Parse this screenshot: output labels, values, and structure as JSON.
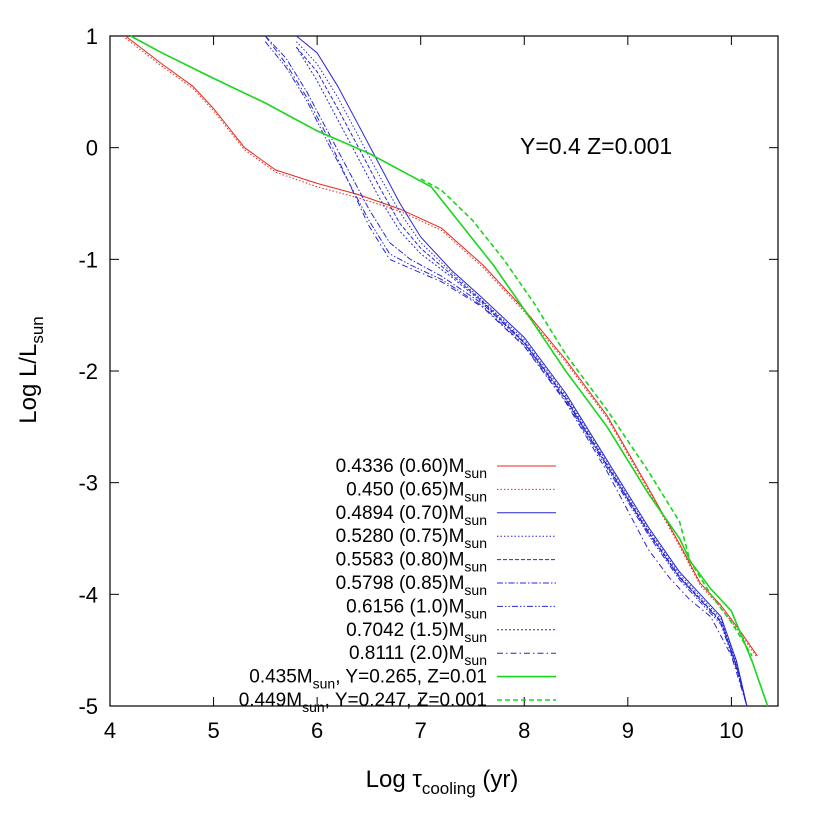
{
  "chart_data": {
    "type": "line",
    "xlabel": {
      "prefix": "Log ",
      "greek": "τ",
      "sub": "cooling",
      "suffix": " (yr)"
    },
    "ylabel": {
      "prefix": "Log L/L",
      "sub": "sun"
    },
    "annotation": "Y=0.4  Z=0.001",
    "xlim": [
      4,
      10.45
    ],
    "ylim": [
      -5,
      1
    ],
    "xticks": [
      4,
      5,
      6,
      7,
      8,
      9,
      10
    ],
    "yticks": [
      1,
      0,
      -1,
      -2,
      -3,
      -4,
      -5
    ],
    "colors": {
      "red": "#e8291f",
      "blue": "#2727d6",
      "green": "#18d61c"
    },
    "series": [
      {
        "label": "0.4336 (0.60)M",
        "sub": "sun",
        "tail": "",
        "color": "#e8291f",
        "dash": "solid",
        "x": [
          4.15,
          4.5,
          4.8,
          5.0,
          5.3,
          5.6,
          6.0,
          6.4,
          6.8,
          7.2,
          7.6,
          8.0,
          8.4,
          8.8,
          9.2,
          9.5,
          9.7,
          9.9,
          10.1,
          10.25
        ],
        "y": [
          1.0,
          0.75,
          0.55,
          0.35,
          0.0,
          -0.2,
          -0.32,
          -0.42,
          -0.55,
          -0.72,
          -1.05,
          -1.45,
          -1.9,
          -2.4,
          -3.05,
          -3.55,
          -3.9,
          -4.1,
          -4.35,
          -4.55
        ]
      },
      {
        "label": "0.450 (0.65)M",
        "sub": "sun",
        "tail": "",
        "color": "#e8291f",
        "dash": "1.5,2",
        "x": [
          4.15,
          4.5,
          4.8,
          5.0,
          5.3,
          5.6,
          6.0,
          6.4,
          6.8,
          7.2,
          7.6,
          8.0,
          8.4,
          8.8,
          9.2,
          9.5,
          9.7,
          9.9,
          10.1,
          10.25
        ],
        "y": [
          0.98,
          0.73,
          0.53,
          0.33,
          -0.02,
          -0.22,
          -0.35,
          -0.45,
          -0.57,
          -0.74,
          -1.07,
          -1.47,
          -1.92,
          -2.42,
          -3.07,
          -3.57,
          -3.92,
          -4.12,
          -4.37,
          -4.57
        ]
      },
      {
        "label": "0.4894 (0.70)M",
        "sub": "sun",
        "tail": "",
        "color": "#2727d6",
        "dash": "solid",
        "x": [
          5.8,
          6.0,
          6.2,
          6.4,
          6.6,
          6.8,
          7.0,
          7.3,
          7.6,
          8.0,
          8.4,
          8.8,
          9.2,
          9.5,
          9.7,
          9.9,
          10.05,
          10.15
        ],
        "y": [
          1.0,
          0.85,
          0.55,
          0.2,
          -0.15,
          -0.5,
          -0.8,
          -1.1,
          -1.35,
          -1.7,
          -2.2,
          -2.8,
          -3.4,
          -3.8,
          -4.0,
          -4.2,
          -4.6,
          -5.0
        ]
      },
      {
        "label": "0.5280 (0.75)M",
        "sub": "sun",
        "tail": "",
        "color": "#2727d6",
        "dash": "1.5,2",
        "x": [
          5.8,
          6.0,
          6.2,
          6.4,
          6.6,
          6.8,
          7.0,
          7.3,
          7.6,
          8.0,
          8.4,
          8.8,
          9.2,
          9.5,
          9.7,
          9.9,
          10.05,
          10.15
        ],
        "y": [
          0.95,
          0.75,
          0.45,
          0.1,
          -0.25,
          -0.58,
          -0.85,
          -1.12,
          -1.37,
          -1.72,
          -2.22,
          -2.82,
          -3.42,
          -3.82,
          -4.02,
          -4.22,
          -4.62,
          -5.0
        ]
      },
      {
        "label": "0.5583 (0.80)M",
        "sub": "sun",
        "tail": "",
        "color": "#2727d6",
        "dash": "4,2",
        "x": [
          5.8,
          6.0,
          6.2,
          6.4,
          6.6,
          6.8,
          7.0,
          7.3,
          7.6,
          8.0,
          8.4,
          8.8,
          9.2,
          9.5,
          9.7,
          9.9,
          10.05,
          10.15
        ],
        "y": [
          0.9,
          0.68,
          0.35,
          0.0,
          -0.35,
          -0.68,
          -0.9,
          -1.14,
          -1.38,
          -1.74,
          -2.24,
          -2.84,
          -3.44,
          -3.84,
          -4.04,
          -4.24,
          -4.64,
          -5.0
        ]
      },
      {
        "label": "0.5798 (0.85)M",
        "sub": "sun",
        "tail": "",
        "color": "#2727d6",
        "dash": "6,2,1.5,2",
        "x": [
          5.5,
          5.7,
          5.9,
          6.1,
          6.3,
          6.5,
          6.7,
          6.9,
          7.2,
          7.6,
          8.0,
          8.4,
          8.8,
          9.2,
          9.5,
          9.7,
          9.9,
          10.05,
          10.15
        ],
        "y": [
          1.0,
          0.8,
          0.5,
          0.15,
          -0.2,
          -0.55,
          -0.85,
          -1.0,
          -1.15,
          -1.4,
          -1.75,
          -2.25,
          -2.85,
          -3.45,
          -3.85,
          -4.05,
          -4.25,
          -4.65,
          -5.0
        ]
      },
      {
        "label": "0.6156 (1.0)M",
        "sub": "sun",
        "tail": "",
        "color": "#2727d6",
        "dash": "6,2,1.5,2,1.5,2",
        "x": [
          5.5,
          5.7,
          5.9,
          6.1,
          6.3,
          6.5,
          6.7,
          6.9,
          7.2,
          7.6,
          8.0,
          8.4,
          8.8,
          9.2,
          9.5,
          9.7,
          9.9,
          10.05,
          10.15
        ],
        "y": [
          0.95,
          0.72,
          0.42,
          0.05,
          -0.3,
          -0.65,
          -0.95,
          -1.05,
          -1.18,
          -1.42,
          -1.77,
          -2.27,
          -2.87,
          -3.47,
          -3.87,
          -4.07,
          -4.27,
          -4.67,
          -5.0
        ]
      },
      {
        "label": "0.7042 (1.5)M",
        "sub": "sun",
        "tail": "",
        "color": "#2727d6",
        "dash": "2,2",
        "x": [
          5.8,
          6.0,
          6.2,
          6.4,
          6.6,
          6.8,
          7.0,
          7.3,
          7.6,
          8.0,
          8.4,
          8.8,
          9.2,
          9.5,
          9.7,
          9.9,
          10.05,
          10.15
        ],
        "y": [
          0.9,
          0.6,
          0.25,
          -0.1,
          -0.45,
          -0.75,
          -0.95,
          -1.16,
          -1.39,
          -1.75,
          -2.25,
          -2.85,
          -3.45,
          -3.85,
          -4.05,
          -4.25,
          -4.65,
          -5.0
        ]
      },
      {
        "label": "0.8111 (2.0)M",
        "sub": "sun",
        "tail": "",
        "color": "#2727d6",
        "dash": "6,3,1.5,3",
        "x": [
          5.5,
          5.7,
          5.9,
          6.1,
          6.3,
          6.5,
          6.7,
          6.9,
          7.2,
          7.6,
          8.0,
          8.4,
          8.8,
          9.2,
          9.4,
          9.6,
          9.8,
          10.0,
          10.15
        ],
        "y": [
          1.0,
          0.75,
          0.45,
          0.1,
          -0.3,
          -0.7,
          -1.0,
          -1.08,
          -1.2,
          -1.43,
          -1.78,
          -2.28,
          -2.9,
          -3.6,
          -3.85,
          -4.05,
          -4.2,
          -4.55,
          -5.0
        ]
      },
      {
        "label": "0.435M",
        "sub": "sun",
        "tail": ", Y=0.265, Z=0.01",
        "color": "#18d61c",
        "dash": "solid",
        "x": [
          4.2,
          4.5,
          5.0,
          5.5,
          6.0,
          6.5,
          6.9,
          7.1,
          7.4,
          7.7,
          8.0,
          8.4,
          8.8,
          9.2,
          9.5,
          9.6,
          9.8,
          10.0,
          10.2,
          10.35
        ],
        "y": [
          1.0,
          0.85,
          0.62,
          0.4,
          0.15,
          -0.05,
          -0.25,
          -0.35,
          -0.7,
          -1.05,
          -1.45,
          -2.0,
          -2.5,
          -3.1,
          -3.5,
          -3.7,
          -3.95,
          -4.15,
          -4.6,
          -5.0
        ]
      },
      {
        "label": "0.449M",
        "sub": "sun",
        "tail": ", Y=0.247, Z=0.001",
        "color": "#18d61c",
        "dash": "5,3",
        "x": [
          7.0,
          7.2,
          7.5,
          7.8,
          8.1,
          8.4,
          8.8,
          9.2,
          9.5,
          9.6,
          9.8,
          10.0,
          10.2
        ],
        "y": [
          -0.28,
          -0.38,
          -0.65,
          -1.0,
          -1.4,
          -1.85,
          -2.35,
          -2.9,
          -3.35,
          -3.7,
          -4.0,
          -4.25,
          -4.55
        ]
      }
    ]
  }
}
